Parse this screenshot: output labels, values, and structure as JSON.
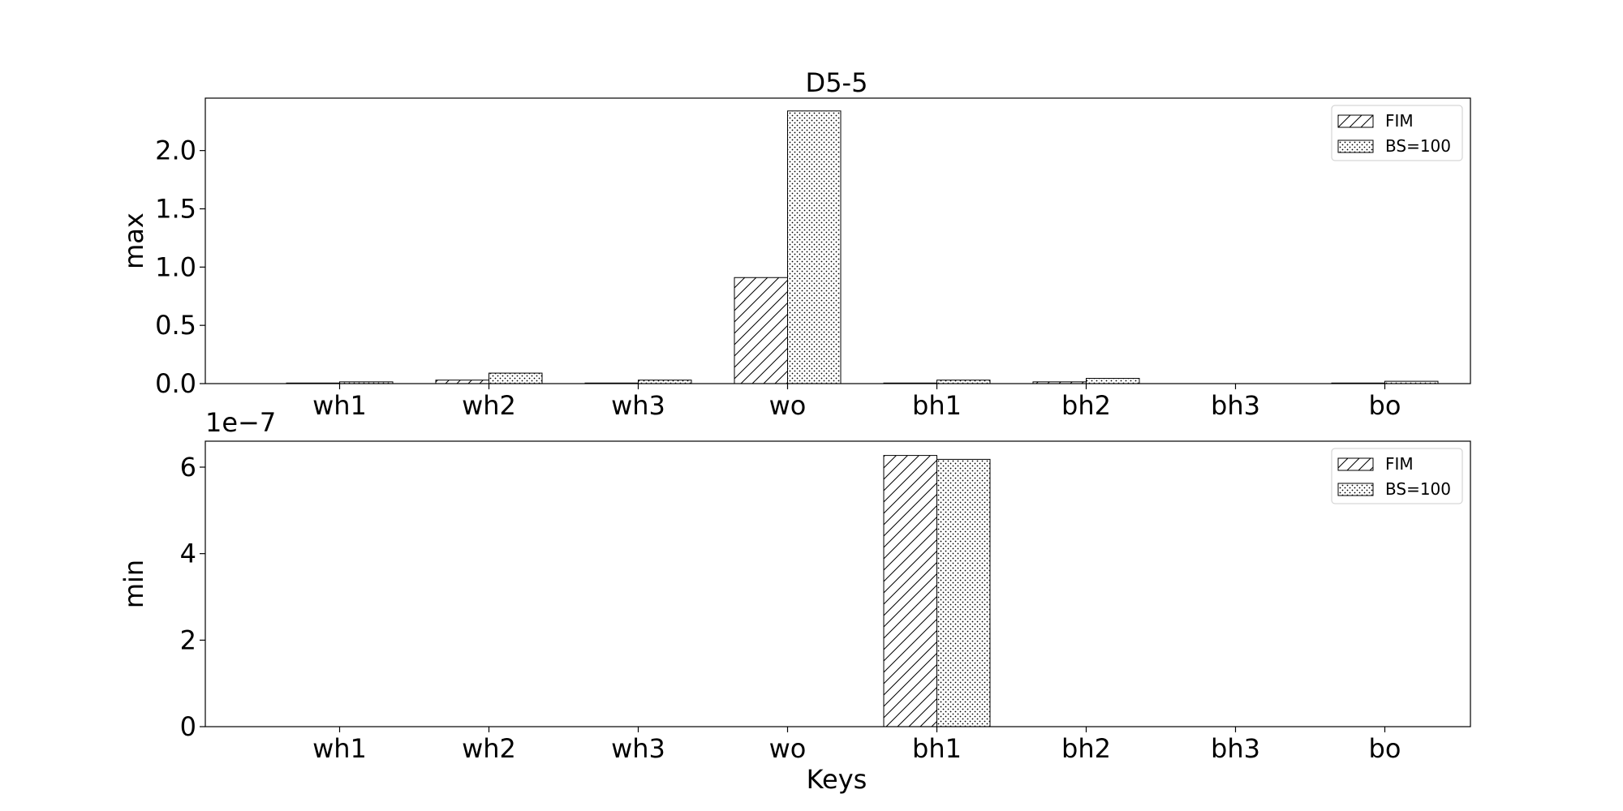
{
  "figure": {
    "title": "D5-5",
    "xlabel": "Keys"
  },
  "chart_data": [
    {
      "type": "bar",
      "title": "D5-5",
      "ylabel": "max",
      "xlabel": "",
      "categories": [
        "wh1",
        "wh2",
        "wh3",
        "wo",
        "bh1",
        "bh2",
        "bh3",
        "bo"
      ],
      "series": [
        {
          "name": "FIM",
          "pattern": "hatch",
          "values": [
            0.005,
            0.03,
            0.005,
            0.91,
            0.005,
            0.015,
            0.0,
            0.005
          ]
        },
        {
          "name": "BS=100",
          "pattern": "dots",
          "values": [
            0.015,
            0.09,
            0.03,
            2.34,
            0.03,
            0.045,
            0.0,
            0.02
          ]
        }
      ],
      "ylim": [
        0,
        2.45
      ],
      "yticks": [
        "0.0",
        "0.5",
        "1.0",
        "1.5",
        "2.0"
      ],
      "ytick_values": [
        0,
        0.5,
        1.0,
        1.5,
        2.0
      ],
      "legend_position": "top-right",
      "grid": false
    },
    {
      "type": "bar",
      "title": "",
      "ylabel": "min",
      "xlabel": "Keys",
      "offset_text": "1e−7",
      "scale": 1e-07,
      "categories": [
        "wh1",
        "wh2",
        "wh3",
        "wo",
        "bh1",
        "bh2",
        "bh3",
        "bo"
      ],
      "series": [
        {
          "name": "FIM",
          "pattern": "hatch",
          "values": [
            0,
            0,
            0,
            0,
            6.27,
            0,
            0,
            0
          ]
        },
        {
          "name": "BS=100",
          "pattern": "dots",
          "values": [
            0,
            0,
            0,
            0,
            6.18,
            0,
            0,
            0
          ]
        }
      ],
      "ylim": [
        0,
        6.6
      ],
      "yticks": [
        "0",
        "2",
        "4",
        "6"
      ],
      "ytick_values": [
        0,
        2,
        4,
        6
      ],
      "legend_position": "top-right",
      "grid": false
    }
  ]
}
